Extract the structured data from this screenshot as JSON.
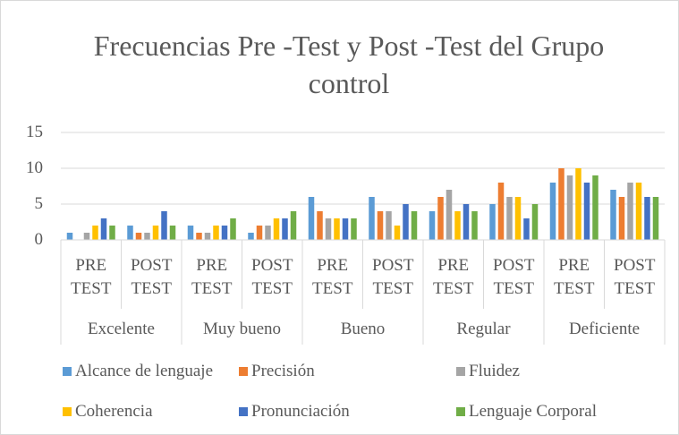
{
  "chart_data": {
    "type": "bar",
    "title": "Frecuencias Pre -Test y Post -Test del Grupo control",
    "groups": [
      "Excelente",
      "Muy bueno",
      "Bueno",
      "Regular",
      "Deficiente"
    ],
    "categories": [
      "PRE TEST",
      "POST TEST",
      "PRE TEST",
      "POST TEST",
      "PRE TEST",
      "POST TEST",
      "PRE TEST",
      "POST TEST",
      "PRE TEST",
      "POST TEST"
    ],
    "series": [
      {
        "name": "Alcance de lenguaje",
        "color": "#5b9bd5",
        "values": [
          1,
          2,
          2,
          1,
          6,
          6,
          4,
          5,
          8,
          7
        ]
      },
      {
        "name": "Precisión",
        "color": "#ed7d31",
        "values": [
          0,
          1,
          1,
          2,
          4,
          4,
          6,
          8,
          10,
          6
        ]
      },
      {
        "name": "Fluidez",
        "color": "#a5a5a5",
        "values": [
          1,
          1,
          1,
          2,
          3,
          4,
          7,
          6,
          9,
          8
        ]
      },
      {
        "name": "Coherencia",
        "color": "#ffc000",
        "values": [
          2,
          2,
          2,
          3,
          3,
          2,
          4,
          6,
          10,
          8
        ]
      },
      {
        "name": "Pronunciación",
        "color": "#4472c4",
        "values": [
          3,
          4,
          2,
          3,
          3,
          5,
          5,
          3,
          8,
          6
        ]
      },
      {
        "name": "Lenguaje Corporal",
        "color": "#70ad47",
        "values": [
          2,
          2,
          3,
          4,
          3,
          4,
          4,
          5,
          9,
          6
        ]
      }
    ],
    "ylim": [
      0,
      15
    ],
    "yticks": [
      0,
      5,
      10,
      15
    ],
    "grid": true,
    "legend": "bottom"
  }
}
